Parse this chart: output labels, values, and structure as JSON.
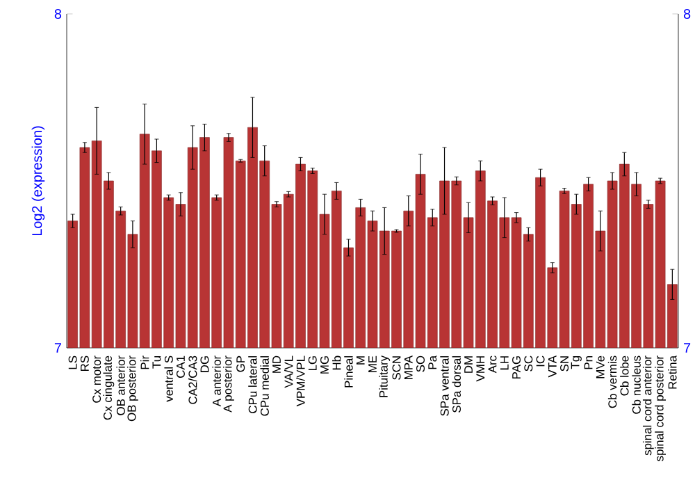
{
  "chart_data": {
    "type": "bar",
    "ylabel": "Log2 (expression)",
    "categories": [
      "LS",
      "RS",
      "Cx motor",
      "Cx cingulate",
      "OB anterior",
      "OB posterior",
      "Pir",
      "Tu",
      "ventral S",
      "CA1",
      "CA2/CA3",
      "DG",
      "A anterior",
      "A posterior",
      "GP",
      "CPu lateral",
      "CPu medial",
      "MD",
      "VA/VL",
      "VPM/VPL",
      "LG",
      "MG",
      "Hb",
      "Pineal",
      "M",
      "ME",
      "Pituitary",
      "SCN",
      "MPA",
      "SO",
      "Pa",
      "SPa ventral",
      "SPa dorsal",
      "DM",
      "VMH",
      "Arc",
      "LH",
      "PAG",
      "SC",
      "IC",
      "VTA",
      "SN",
      "Tg",
      "Pn",
      "MVe",
      "Cb vermis",
      "Cb lobe",
      "Cb nucleus",
      "spinal cord anterior",
      "spinal cord posterior",
      "Retina"
    ],
    "values": [
      7.38,
      7.6,
      7.62,
      7.5,
      7.41,
      7.34,
      7.64,
      7.59,
      7.45,
      7.43,
      7.6,
      7.63,
      7.45,
      7.63,
      7.56,
      7.66,
      7.56,
      7.43,
      7.46,
      7.55,
      7.53,
      7.4,
      7.47,
      7.3,
      7.42,
      7.38,
      7.35,
      7.35,
      7.41,
      7.52,
      7.39,
      7.5,
      7.5,
      7.39,
      7.53,
      7.44,
      7.39,
      7.39,
      7.34,
      7.51,
      7.24,
      7.47,
      7.43,
      7.49,
      7.35,
      7.5,
      7.55,
      7.49,
      7.43,
      7.5,
      7.19
    ],
    "errors": [
      0.02,
      0.015,
      0.1,
      0.025,
      0.012,
      0.04,
      0.09,
      0.035,
      0.008,
      0.035,
      0.065,
      0.04,
      0.008,
      0.012,
      0.004,
      0.09,
      0.045,
      0.008,
      0.008,
      0.02,
      0.008,
      0.06,
      0.025,
      0.025,
      0.025,
      0.03,
      0.07,
      0.004,
      0.045,
      0.06,
      0.025,
      0.1,
      0.012,
      0.045,
      0.03,
      0.012,
      0.06,
      0.015,
      0.02,
      0.025,
      0.015,
      0.008,
      0.03,
      0.02,
      0.06,
      0.025,
      0.035,
      0.035,
      0.012,
      0.008,
      0.045
    ],
    "color": "#b83434",
    "ylim": [
      7,
      8
    ],
    "yticks": [
      7,
      8
    ],
    "y2lim": [
      7,
      8
    ],
    "y2ticks": [
      7,
      8
    ],
    "grid": false
  }
}
